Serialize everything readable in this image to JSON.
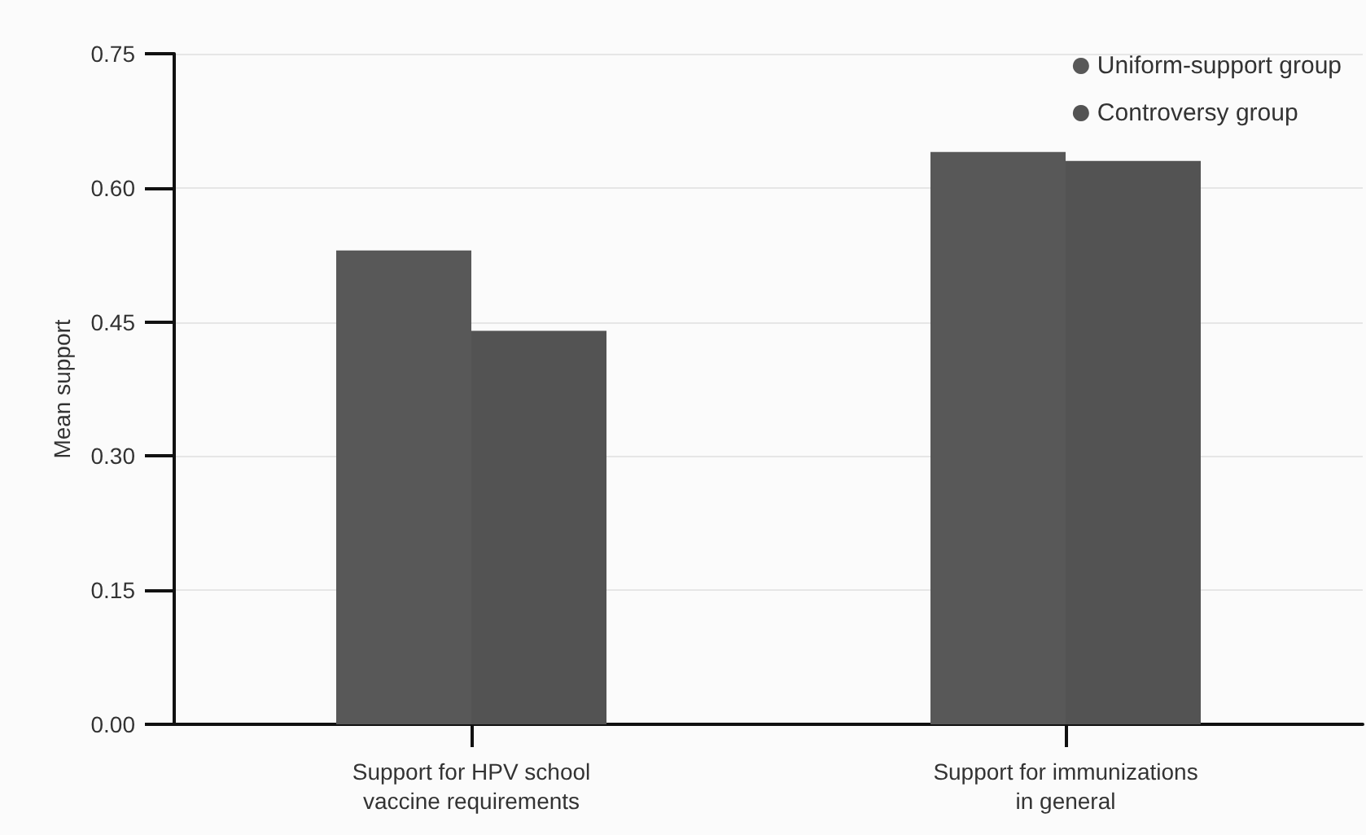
{
  "chart_data": {
    "type": "bar",
    "ylabel": "Mean support",
    "categories": [
      "Support for HPV school\nvaccine requirements",
      "Support for immunizations\nin general"
    ],
    "series": [
      {
        "name": "Uniform-support group",
        "color": "#585858",
        "values": [
          0.53,
          0.64
        ]
      },
      {
        "name": "Controversy group",
        "color": "#535353",
        "values": [
          0.44,
          0.63
        ]
      }
    ],
    "ylim": [
      0,
      0.75
    ],
    "yticks": [
      {
        "value": 0,
        "label": "0.00"
      },
      0.15,
      {
        "value": 0.3,
        "label": "0.30"
      },
      0.45,
      {
        "value": 0.6,
        "label": "0.60"
      },
      0.75
    ],
    "grid": "y",
    "legend": "top right"
  }
}
